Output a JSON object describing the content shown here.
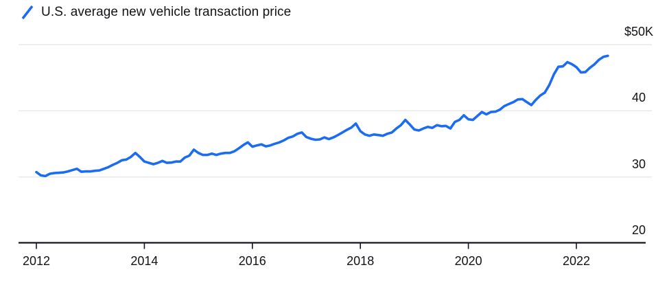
{
  "legend": {
    "series_label": "U.S. average new vehicle transaction price"
  },
  "chart_data": {
    "type": "line",
    "title": "U.S. average new vehicle transaction price",
    "unit": "thousands of U.S. dollars",
    "line_color": "#1b6cf2",
    "grid": "horizontal-only",
    "legend_position": "top-left",
    "x_axis": {
      "interval": "monthly",
      "start": "2012-01",
      "end": "2022-08",
      "tick_labels": [
        "2012",
        "2014",
        "2016",
        "2018",
        "2020",
        "2022"
      ]
    },
    "y_axis": {
      "tick_labels": [
        "$50K",
        "40",
        "30",
        "20"
      ],
      "tick_values_k": [
        50,
        40,
        30,
        20
      ],
      "ylim_k": [
        20,
        52
      ],
      "side": "right"
    },
    "series": [
      {
        "name": "U.S. average new vehicle transaction price",
        "values_k_usd": [
          30.7,
          30.2,
          30.1,
          30.45,
          30.55,
          30.6,
          30.65,
          30.8,
          31.0,
          31.2,
          30.75,
          30.8,
          30.8,
          30.9,
          30.95,
          31.2,
          31.45,
          31.8,
          32.1,
          32.5,
          32.6,
          33.0,
          33.6,
          33.0,
          32.3,
          32.1,
          31.9,
          32.1,
          32.4,
          32.1,
          32.15,
          32.3,
          32.3,
          32.9,
          33.2,
          34.1,
          33.6,
          33.3,
          33.3,
          33.5,
          33.3,
          33.5,
          33.6,
          33.6,
          33.85,
          34.3,
          34.8,
          35.2,
          34.55,
          34.75,
          34.9,
          34.6,
          34.75,
          35.0,
          35.2,
          35.5,
          35.9,
          36.1,
          36.5,
          36.7,
          36.0,
          35.75,
          35.6,
          35.65,
          35.95,
          35.7,
          35.95,
          36.3,
          36.7,
          37.1,
          37.45,
          38.05,
          36.9,
          36.4,
          36.2,
          36.4,
          36.3,
          36.2,
          36.5,
          36.7,
          37.3,
          37.8,
          38.6,
          37.9,
          37.15,
          37.0,
          37.3,
          37.55,
          37.4,
          37.8,
          37.65,
          37.7,
          37.3,
          38.3,
          38.6,
          39.3,
          38.7,
          38.6,
          39.2,
          39.8,
          39.45,
          39.8,
          39.85,
          40.15,
          40.7,
          41.0,
          41.3,
          41.7,
          41.75,
          41.3,
          40.85,
          41.65,
          42.3,
          42.75,
          43.9,
          45.5,
          46.65,
          46.7,
          47.35,
          47.05,
          46.6,
          45.8,
          45.85,
          46.5,
          47.0,
          47.7,
          48.15,
          48.3
        ]
      }
    ]
  }
}
